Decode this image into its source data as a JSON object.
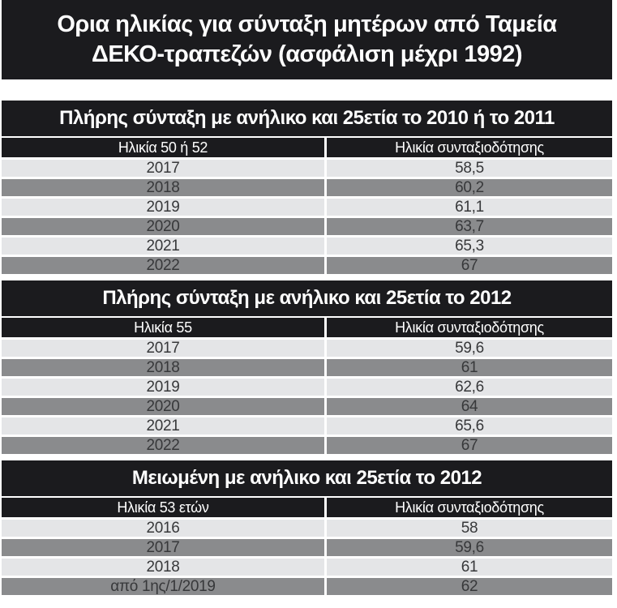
{
  "main_title": {
    "line1": "Ορια ηλικίας για σύνταξη μητέρων από Ταμεία",
    "line2": "ΔΕΚΟ-τραπεζών (ασφάλιση μέχρι 1992)"
  },
  "colors": {
    "bar_black": "#1b1b1e",
    "row_light": "#e4e5e7",
    "row_dark": "#8a8b8d",
    "row_text": "#37383a",
    "bar_text": "#ffffff",
    "page_bg": "#ffffff"
  },
  "chart_data": [
    {
      "type": "table",
      "title": "Πλήρης σύνταξη με ανήλικο και 25ετία το 2010 ή το 2011",
      "columns": [
        "Ηλικία 50 ή 52",
        "Ηλικία συνταξιοδότησης"
      ],
      "rows": [
        [
          "2017",
          "58,5"
        ],
        [
          "2018",
          "60,2"
        ],
        [
          "2019",
          "61,1"
        ],
        [
          "2020",
          "63,7"
        ],
        [
          "2021",
          "65,3"
        ],
        [
          "2022",
          "67"
        ]
      ]
    },
    {
      "type": "table",
      "title": "Πλήρης σύνταξη με ανήλικο και 25ετία το 2012",
      "columns": [
        "Ηλικία 55",
        "Ηλικία συνταξιοδότησης"
      ],
      "rows": [
        [
          "2017",
          "59,6"
        ],
        [
          "2018",
          "61"
        ],
        [
          "2019",
          "62,6"
        ],
        [
          "2020",
          "64"
        ],
        [
          "2021",
          "65,6"
        ],
        [
          "2022",
          "67"
        ]
      ]
    },
    {
      "type": "table",
      "title": "Μειωμένη με ανήλικο και 25ετία το 2012",
      "columns": [
        "Ηλικία 53 ετών",
        "Ηλικία συνταξιοδότησης"
      ],
      "rows": [
        [
          "2016",
          "58"
        ],
        [
          "2017",
          "59,6"
        ],
        [
          "2018",
          "61"
        ],
        [
          "από 1ης/1/2019",
          "62"
        ]
      ]
    }
  ]
}
